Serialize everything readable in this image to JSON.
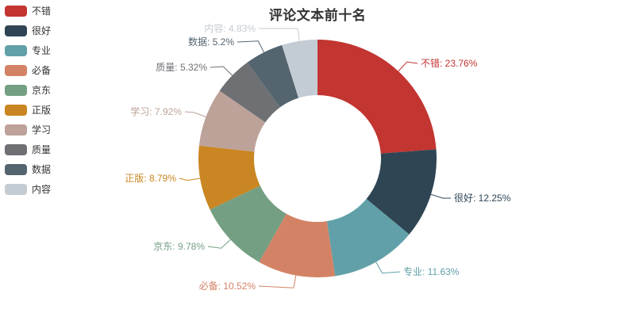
{
  "chart_data": {
    "type": "pie",
    "subtype": "donut",
    "title": "评论文本前十名",
    "background": "#ffffff",
    "text_color": "#333333",
    "legend_position": "top-left-vertical",
    "label_format": "{name}: {value}%",
    "inner_radius_pct": 40,
    "outer_radius_pct": 75,
    "series": [
      {
        "name": "不错",
        "value": 23.76,
        "color": "#c23531"
      },
      {
        "name": "很好",
        "value": 12.25,
        "color": "#2f4554"
      },
      {
        "name": "专业",
        "value": 11.63,
        "color": "#61a0a8"
      },
      {
        "name": "必备",
        "value": 10.52,
        "color": "#d48265"
      },
      {
        "name": "京东",
        "value": 9.78,
        "color": "#749f83"
      },
      {
        "name": "正版",
        "value": 8.79,
        "color": "#ca8622"
      },
      {
        "name": "学习",
        "value": 7.92,
        "color": "#bda29a"
      },
      {
        "name": "质量",
        "value": 5.32,
        "color": "#6e7074"
      },
      {
        "name": "数据",
        "value": 5.2,
        "color": "#546570"
      },
      {
        "name": "内容",
        "value": 4.83,
        "color": "#c4ccd3"
      }
    ],
    "legend_items": [
      "不错",
      "很好",
      "专业",
      "必备",
      "京东",
      "正版",
      "学习",
      "质量",
      "数据",
      "内容"
    ],
    "slice_labels": [
      "不错: 23.76%",
      "很好: 12.25%",
      "专业: 11.63%",
      "必备: 10.52%",
      "京东: 9.78%",
      "正版: 8.79%",
      "学习: 7.92%",
      "质量: 5.32%",
      "数据: 5.2%",
      "内容: 4.83%"
    ]
  }
}
